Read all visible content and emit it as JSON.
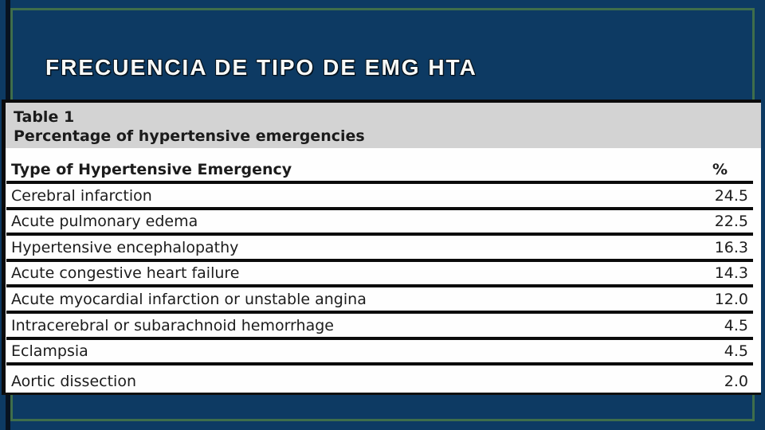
{
  "slide": {
    "title": "FRECUENCIA DE TIPO DE EMG HTA",
    "colors": {
      "background": "#0d3a63",
      "frame_green": "#3f6e4b",
      "left_bar_black": "#071220",
      "caption_band_gray": "#d3d3d3",
      "table_text": "#1c1c1c",
      "title_text": "#f7f9f7"
    }
  },
  "table": {
    "caption_line1": "Table 1",
    "caption_line2": "Percentage of hypertensive emergencies",
    "columns": [
      "Type of Hypertensive Emergency",
      "%"
    ],
    "rows": [
      {
        "label": "Cerebral infarction",
        "value": "24.5"
      },
      {
        "label": "Acute pulmonary edema",
        "value": "22.5"
      },
      {
        "label": "Hypertensive encephalopathy",
        "value": "16.3"
      },
      {
        "label": "Acute congestive heart failure",
        "value": "14.3"
      },
      {
        "label": "Acute myocardial infarction or unstable angina",
        "value": "12.0"
      },
      {
        "label": "Intracerebral or subarachnoid hemorrhage",
        "value": "4.5"
      },
      {
        "label": "Eclampsia",
        "value": "4.5"
      },
      {
        "label": "Aortic dissection",
        "value": "2.0"
      }
    ]
  },
  "chart_data": {
    "type": "table",
    "title": "Percentage of hypertensive emergencies",
    "categories": [
      "Cerebral infarction",
      "Acute pulmonary edema",
      "Hypertensive encephalopathy",
      "Acute congestive heart failure",
      "Acute myocardial infarction or unstable angina",
      "Intracerebral or subarachnoid hemorrhage",
      "Eclampsia",
      "Aortic dissection"
    ],
    "values": [
      24.5,
      22.5,
      16.3,
      14.3,
      12.0,
      4.5,
      4.5,
      2.0
    ],
    "xlabel": "Type of Hypertensive Emergency",
    "ylabel": "%"
  }
}
